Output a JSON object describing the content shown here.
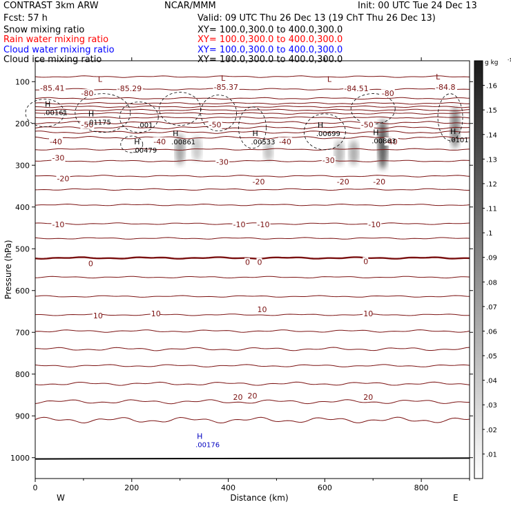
{
  "header": {
    "title": "CONTRAST  3km ARW",
    "source": "NCAR/MMM",
    "init": "Init: 00 UTC Tue 24 Dec 13",
    "fcst": "Fcst:   57 h",
    "valid": "Valid: 09 UTC Thu 26 Dec 13 (19 ChT Thu 26 Dec 13)"
  },
  "fields": [
    {
      "name": "Snow mixing ratio",
      "xy": "XY= 100.0,300.0 to 400.0,300.0",
      "color": "#000000"
    },
    {
      "name": "Rain water mixing ratio",
      "xy": "XY= 100.0,300.0 to 400.0,300.0",
      "color": "#ff0000"
    },
    {
      "name": "Cloud water mixing ratio",
      "xy": "XY= 100.0,300.0 to 400.0,300.0",
      "color": "#0000ff"
    },
    {
      "name": "Cloud ice mixing ratio",
      "xy": "XY= 100.0,300.0 to 400.0,300.0",
      "color": "#000000"
    }
  ],
  "colors": {
    "temperature": "#7a1010",
    "freezing": "#7a1010",
    "cloud_water": "#0000c0",
    "frame": "#000000"
  },
  "chart_data": {
    "type": "contour",
    "xlabel": "Distance (km)",
    "ylabel": "Pressure (hPa)",
    "xlim": [
      0,
      900
    ],
    "ylim": [
      1050,
      50
    ],
    "xticks": [
      0,
      200,
      400,
      600,
      800
    ],
    "yticks": [
      100,
      200,
      300,
      400,
      500,
      600,
      700,
      800,
      900,
      1000
    ],
    "direction_labels": {
      "left": "W",
      "right": "E"
    },
    "colorbar": {
      "unit": "g kg",
      "unit_exp": "-1",
      "ticks": [
        ".01",
        ".02",
        ".03",
        ".04",
        ".05",
        ".06",
        ".07",
        ".08",
        ".09",
        ".1",
        ".11",
        ".12",
        ".13",
        ".14",
        ".15",
        ".16"
      ]
    },
    "temperature_contours_C": {
      "levels": [
        -85,
        -80,
        -75,
        -70,
        -65,
        -60,
        -55,
        -50,
        -45,
        -40,
        -35,
        -30,
        -25,
        -20,
        -15,
        -10,
        -5,
        0,
        5,
        10,
        15,
        20,
        25
      ],
      "base_pressure_hPa": [
        88,
        118,
        140,
        152,
        160,
        168,
        176,
        186,
        198,
        210,
        221,
        234,
        262,
        290,
        326,
        358,
        395,
        440,
        475,
        522,
        568,
        614,
        658,
        697,
        740,
        780,
        823,
        866,
        910
      ],
      "wave_amplitude_hPa": [
        2,
        2,
        2,
        2,
        2,
        2,
        2,
        2,
        3,
        3,
        3,
        3,
        2,
        2,
        2,
        2,
        2,
        2,
        2,
        2,
        2,
        2,
        2,
        3,
        4,
        3,
        4,
        5,
        7
      ],
      "labels": [
        {
          "text": "-85.41",
          "x": 10,
          "p": 115
        },
        {
          "text": "-85.29",
          "x": 170,
          "p": 116
        },
        {
          "text": "-85.37",
          "x": 370,
          "p": 113
        },
        {
          "text": "-84.51",
          "x": 640,
          "p": 116
        },
        {
          "text": "-84.8",
          "x": 830,
          "p": 113
        },
        {
          "text": "-80",
          "x": 95,
          "p": 128
        },
        {
          "text": "-80",
          "x": 718,
          "p": 128
        },
        {
          "text": "-50",
          "x": 95,
          "p": 203
        },
        {
          "text": "-50",
          "x": 360,
          "p": 203
        },
        {
          "text": "-50",
          "x": 675,
          "p": 203
        },
        {
          "text": "-40",
          "x": 30,
          "p": 243
        },
        {
          "text": "-40",
          "x": 245,
          "p": 243
        },
        {
          "text": "-40",
          "x": 505,
          "p": 243
        },
        {
          "text": "-40",
          "x": 725,
          "p": 243
        },
        {
          "text": "-30",
          "x": 35,
          "p": 282
        },
        {
          "text": "-30",
          "x": 375,
          "p": 292
        },
        {
          "text": "-30",
          "x": 595,
          "p": 288
        },
        {
          "text": "-20",
          "x": 45,
          "p": 332
        },
        {
          "text": "-20",
          "x": 450,
          "p": 339
        },
        {
          "text": "-20",
          "x": 625,
          "p": 339
        },
        {
          "text": "-20",
          "x": 700,
          "p": 339
        },
        {
          "text": "-10",
          "x": 35,
          "p": 442
        },
        {
          "text": "-10",
          "x": 410,
          "p": 442
        },
        {
          "text": "-10",
          "x": 460,
          "p": 442
        },
        {
          "text": "-10",
          "x": 690,
          "p": 442
        },
        {
          "text": "0",
          "x": 110,
          "p": 535
        },
        {
          "text": "0",
          "x": 435,
          "p": 532
        },
        {
          "text": "0",
          "x": 460,
          "p": 532
        },
        {
          "text": "0",
          "x": 680,
          "p": 530
        },
        {
          "text": "10",
          "x": 120,
          "p": 660
        },
        {
          "text": "10",
          "x": 240,
          "p": 655
        },
        {
          "text": "10",
          "x": 460,
          "p": 645
        },
        {
          "text": "10",
          "x": 680,
          "p": 655
        },
        {
          "text": "20",
          "x": 410,
          "p": 855
        },
        {
          "text": "20",
          "x": 440,
          "p": 852
        },
        {
          "text": "20",
          "x": 680,
          "p": 855
        }
      ]
    },
    "extrema": [
      {
        "type": "L",
        "x": 130,
        "p": 100
      },
      {
        "type": "L",
        "x": 385,
        "p": 98
      },
      {
        "type": "L",
        "x": 605,
        "p": 100
      },
      {
        "type": "L",
        "x": 830,
        "p": 95
      },
      {
        "type": "H",
        "x": 20,
        "p": 160,
        "value": ".00161"
      },
      {
        "type": "H",
        "x": 110,
        "p": 183,
        "value": ".01175"
      },
      {
        "type": "H",
        "x": 205,
        "p": 250,
        "value": ".00479"
      },
      {
        "type": "",
        "x": 215,
        "p": 190,
        "value": ".001"
      },
      {
        "type": "H",
        "x": 285,
        "p": 230,
        "value": ".00861"
      },
      {
        "type": "H",
        "x": 450,
        "p": 230,
        "value": ".00533"
      },
      {
        "type": "H",
        "x": 585,
        "p": 210,
        "value": ".00699"
      },
      {
        "type": "H",
        "x": 700,
        "p": 228,
        "value": ".00863"
      },
      {
        "type": "H",
        "x": 860,
        "p": 225,
        "value": ".0101"
      }
    ],
    "cloud_water": {
      "type": "H",
      "x": 335,
      "p": 955,
      "value": ".00176"
    },
    "snow_shading_columns": [
      {
        "x": 300,
        "p_top": 225,
        "p_bot": 300,
        "intensity": 0.5
      },
      {
        "x": 335,
        "p_top": 230,
        "p_bot": 290,
        "intensity": 0.3
      },
      {
        "x": 483,
        "p_top": 245,
        "p_bot": 290,
        "intensity": 0.35
      },
      {
        "x": 630,
        "p_top": 240,
        "p_bot": 300,
        "intensity": 0.4
      },
      {
        "x": 660,
        "p_top": 240,
        "p_bot": 300,
        "intensity": 0.45
      },
      {
        "x": 720,
        "p_top": 190,
        "p_bot": 310,
        "intensity": 0.9
      },
      {
        "x": 870,
        "p_top": 160,
        "p_bot": 260,
        "intensity": 0.65
      }
    ]
  }
}
